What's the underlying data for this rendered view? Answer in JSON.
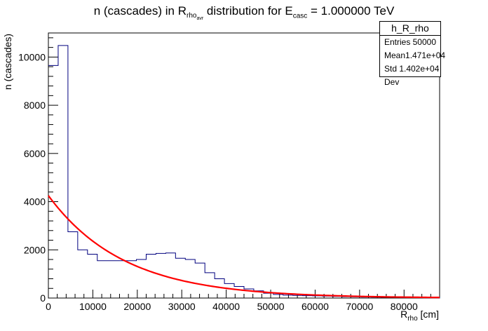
{
  "title": {
    "pre": "n (cascades) in R",
    "sub1": "rho",
    "sub2": "avr",
    "mid": " distribution for E",
    "sub3": "casc",
    "post": " = 1.000000 TeV"
  },
  "stats": {
    "name": "h_R_rho",
    "entries_label": "Entries",
    "entries_value": "50000",
    "mean_label": "Mean",
    "mean_value": "1.471e+04",
    "std_label": "Std Dev",
    "std_value": "1.402e+04"
  },
  "axes": {
    "xlabel_main": "R",
    "xlabel_sub": "rho",
    "xlabel_unit": " [cm]",
    "ylabel": "n (cascades)"
  },
  "colors": {
    "hist": "#00007f",
    "fit": "#ff0000",
    "axis": "#000000"
  },
  "chart_data": {
    "type": "histogram",
    "xlim": [
      0,
      88000
    ],
    "ylim": [
      0,
      11000
    ],
    "xticks": [
      0,
      10000,
      20000,
      30000,
      40000,
      50000,
      60000,
      70000,
      80000
    ],
    "yticks": [
      0,
      2000,
      4000,
      6000,
      8000,
      10000
    ],
    "bin_width": 2200,
    "bin_edges_start": 0,
    "counts": [
      9650,
      10480,
      2750,
      2000,
      1820,
      1550,
      1550,
      1550,
      1550,
      1600,
      1820,
      1850,
      1870,
      1650,
      1600,
      1450,
      1050,
      800,
      600,
      480,
      380,
      300,
      200,
      150,
      120,
      110,
      100,
      90,
      80,
      70,
      60,
      50,
      40,
      35,
      30,
      25,
      20,
      15,
      12,
      10
    ],
    "fit": {
      "type": "exponential",
      "A": 4250,
      "lambda": 17000,
      "x_range": [
        0,
        88000
      ]
    }
  }
}
